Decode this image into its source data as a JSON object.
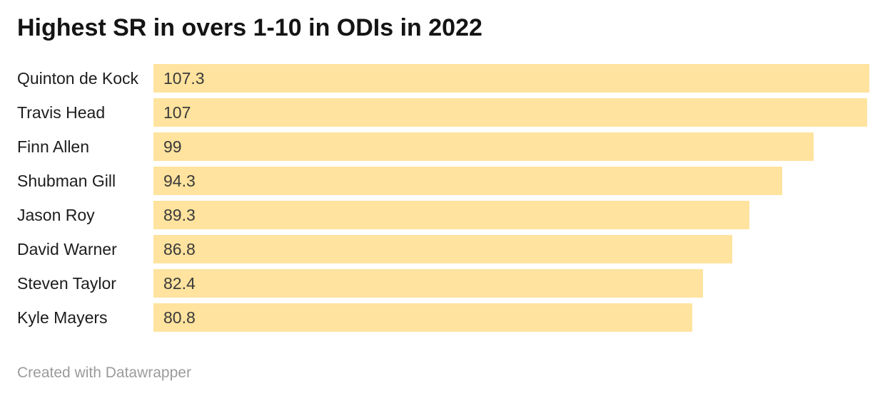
{
  "header": {
    "title": "Highest SR in overs 1-10 in ODIs in 2022"
  },
  "footer": {
    "attribution": "Created with Datawrapper"
  },
  "colors": {
    "bar": "#ffe39e",
    "title_text": "#141414",
    "label_text": "#1d1d1d",
    "value_text": "#3a3a3a",
    "footer_text": "#9b9b9b",
    "background": "#ffffff"
  },
  "chart_data": {
    "type": "bar",
    "orientation": "horizontal",
    "title": "Highest SR in overs 1-10 in ODIs in 2022",
    "xlabel": "",
    "ylabel": "",
    "categories": [
      "Quinton de Kock",
      "Travis Head",
      "Finn Allen",
      "Shubman Gill",
      "Jason Roy",
      "David Warner",
      "Steven Taylor",
      "Kyle Mayers"
    ],
    "values": [
      107.3,
      107,
      99,
      94.3,
      89.3,
      86.8,
      82.4,
      80.8
    ],
    "value_labels": [
      "107.3",
      "107",
      "99",
      "94.3",
      "89.3",
      "86.8",
      "82.4",
      "80.8"
    ],
    "xlim": [
      0,
      107.3
    ],
    "grid": false,
    "legend": false,
    "value_label_position": "inside-left"
  }
}
